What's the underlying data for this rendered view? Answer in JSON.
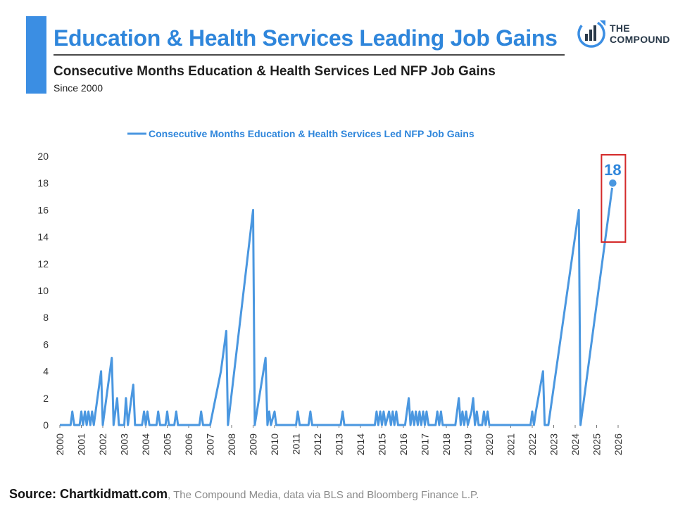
{
  "header": {
    "title": "Education & Health Services Leading Job Gains",
    "subtitle": "Consecutive Months Education & Health Services Led NFP Job Gains",
    "since": "Since 2000"
  },
  "logo": {
    "line1": "THE",
    "line2": "COMPOUND",
    "icon": "bar-chart-circle-icon"
  },
  "source": {
    "bold": "Source: Chartkidmatt.com",
    "rest": ", The Compound Media, data via BLS and Bloomberg Finance L.P."
  },
  "colors": {
    "accent": "#3b8ee3",
    "title": "#2f86db",
    "series": "#4a97e0",
    "highlight_box": "#d42a2a"
  },
  "chart_data": {
    "type": "line",
    "series": [
      {
        "name": "Consecutive Months Education & Health Services Led NFP Job Gains",
        "points": [
          [
            2000.0,
            0
          ],
          [
            2000.5,
            0
          ],
          [
            2000.58,
            1
          ],
          [
            2000.67,
            0
          ],
          [
            2000.92,
            0
          ],
          [
            2001.0,
            1
          ],
          [
            2001.08,
            0
          ],
          [
            2001.17,
            1
          ],
          [
            2001.25,
            0
          ],
          [
            2001.33,
            1
          ],
          [
            2001.42,
            0
          ],
          [
            2001.5,
            1
          ],
          [
            2001.58,
            0
          ],
          [
            2001.75,
            2
          ],
          [
            2001.92,
            4
          ],
          [
            2002.0,
            0
          ],
          [
            2002.25,
            3
          ],
          [
            2002.42,
            5
          ],
          [
            2002.5,
            0
          ],
          [
            2002.67,
            2
          ],
          [
            2002.75,
            0
          ],
          [
            2003.0,
            0
          ],
          [
            2003.08,
            2
          ],
          [
            2003.17,
            0
          ],
          [
            2003.33,
            2
          ],
          [
            2003.42,
            3
          ],
          [
            2003.5,
            0
          ],
          [
            2003.83,
            0
          ],
          [
            2003.92,
            1
          ],
          [
            2004.0,
            0
          ],
          [
            2004.08,
            1
          ],
          [
            2004.17,
            0
          ],
          [
            2004.5,
            0
          ],
          [
            2004.58,
            1
          ],
          [
            2004.67,
            0
          ],
          [
            2004.92,
            0
          ],
          [
            2005.0,
            1
          ],
          [
            2005.08,
            0
          ],
          [
            2005.33,
            0
          ],
          [
            2005.42,
            1
          ],
          [
            2005.5,
            0
          ],
          [
            2006.5,
            0
          ],
          [
            2006.58,
            1
          ],
          [
            2006.67,
            0
          ],
          [
            2007.0,
            0
          ],
          [
            2007.5,
            4
          ],
          [
            2007.75,
            7
          ],
          [
            2007.83,
            0
          ],
          [
            2009.0,
            16
          ],
          [
            2009.08,
            0
          ],
          [
            2009.58,
            5
          ],
          [
            2009.67,
            0
          ],
          [
            2009.75,
            1
          ],
          [
            2009.83,
            0
          ],
          [
            2010.0,
            1
          ],
          [
            2010.08,
            0
          ],
          [
            2011.0,
            0
          ],
          [
            2011.08,
            1
          ],
          [
            2011.17,
            0
          ],
          [
            2011.58,
            0
          ],
          [
            2011.67,
            1
          ],
          [
            2011.75,
            0
          ],
          [
            2013.08,
            0
          ],
          [
            2013.17,
            1
          ],
          [
            2013.25,
            0
          ],
          [
            2014.67,
            0
          ],
          [
            2014.75,
            1
          ],
          [
            2014.83,
            0
          ],
          [
            2014.92,
            1
          ],
          [
            2015.0,
            0
          ],
          [
            2015.08,
            1
          ],
          [
            2015.17,
            0
          ],
          [
            2015.33,
            1
          ],
          [
            2015.42,
            0
          ],
          [
            2015.5,
            1
          ],
          [
            2015.58,
            0
          ],
          [
            2015.67,
            1
          ],
          [
            2015.75,
            0
          ],
          [
            2016.08,
            0
          ],
          [
            2016.25,
            2
          ],
          [
            2016.33,
            0
          ],
          [
            2016.42,
            1
          ],
          [
            2016.5,
            0
          ],
          [
            2016.58,
            1
          ],
          [
            2016.67,
            0
          ],
          [
            2016.75,
            1
          ],
          [
            2016.83,
            0
          ],
          [
            2016.92,
            1
          ],
          [
            2017.0,
            0
          ],
          [
            2017.08,
            1
          ],
          [
            2017.17,
            0
          ],
          [
            2017.5,
            0
          ],
          [
            2017.58,
            1
          ],
          [
            2017.67,
            0
          ],
          [
            2017.75,
            1
          ],
          [
            2017.83,
            0
          ],
          [
            2018.42,
            0
          ],
          [
            2018.58,
            2
          ],
          [
            2018.67,
            0
          ],
          [
            2018.75,
            1
          ],
          [
            2018.83,
            0
          ],
          [
            2018.92,
            1
          ],
          [
            2019.0,
            0
          ],
          [
            2019.17,
            1
          ],
          [
            2019.25,
            2
          ],
          [
            2019.33,
            0
          ],
          [
            2019.42,
            1
          ],
          [
            2019.5,
            0
          ],
          [
            2019.67,
            0
          ],
          [
            2019.75,
            1
          ],
          [
            2019.83,
            0
          ],
          [
            2019.92,
            1
          ],
          [
            2020.0,
            0
          ],
          [
            2021.92,
            0
          ],
          [
            2022.0,
            1
          ],
          [
            2022.08,
            0
          ],
          [
            2022.17,
            1
          ],
          [
            2022.5,
            4
          ],
          [
            2022.58,
            0
          ],
          [
            2022.75,
            0
          ],
          [
            2024.17,
            16
          ],
          [
            2024.25,
            0
          ],
          [
            2025.75,
            18
          ]
        ]
      }
    ],
    "xlim": [
      2000,
      2026
    ],
    "ylim": [
      0,
      20
    ],
    "x_ticks": [
      "2000",
      "2001",
      "2002",
      "2003",
      "2004",
      "2005",
      "2006",
      "2007",
      "2008",
      "2009",
      "2010",
      "2011",
      "2012",
      "2013",
      "2014",
      "2015",
      "2016",
      "2017",
      "2018",
      "2019",
      "2020",
      "2021",
      "2022",
      "2023",
      "2024",
      "2025",
      "2026"
    ],
    "y_ticks": [
      "0",
      "2",
      "4",
      "6",
      "8",
      "10",
      "12",
      "14",
      "16",
      "18",
      "20"
    ],
    "annotation": {
      "label": "18",
      "x": 2025.75,
      "y": 18
    },
    "legend": {
      "label": "Consecutive Months Education & Health Services Led NFP Job Gains",
      "position": "top"
    },
    "grid": false
  }
}
